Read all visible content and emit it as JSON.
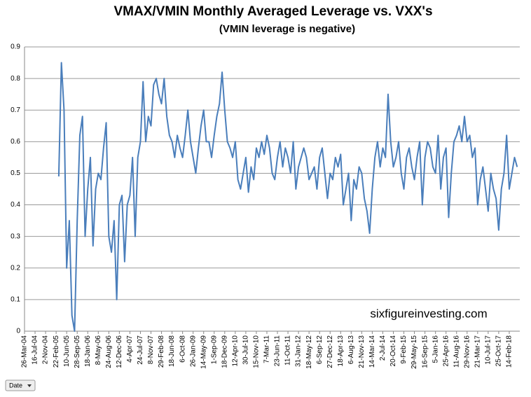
{
  "chart_data": {
    "type": "line",
    "title": "VMAX/VMIN Monthly Averaged Leverage vs. VXX's",
    "subtitle": "(VMIN leverage is negative)",
    "annotation": "sixfigureinvesting.com",
    "filter_button": "Date",
    "categories": [
      "26-Mar-04",
      null,
      null,
      null,
      "16-Jul-04",
      null,
      null,
      null,
      "2-Nov-04",
      null,
      null,
      null,
      "22-Feb-05",
      null,
      null,
      null,
      "10-Jun-05",
      null,
      null,
      null,
      "28-Sep-05",
      null,
      null,
      null,
      "18-Jan-06",
      null,
      null,
      null,
      "8-May-06",
      null,
      null,
      null,
      "24-Aug-06",
      null,
      null,
      null,
      "12-Dec-06",
      null,
      null,
      null,
      "4-Apr-07",
      null,
      null,
      null,
      "24-Jul-07",
      null,
      null,
      null,
      "8-Nov-07",
      null,
      null,
      null,
      "29-Feb-08",
      null,
      null,
      null,
      "18-Jun-08",
      null,
      null,
      null,
      "6-Oct-08",
      null,
      null,
      null,
      "26-Jan-09",
      null,
      null,
      null,
      "14-May-09",
      null,
      null,
      null,
      "1-Sep-09",
      null,
      null,
      null,
      "18-Dec-09",
      null,
      null,
      null,
      "12-Apr-10",
      null,
      null,
      null,
      "30-Jul-10",
      null,
      null,
      null,
      "15-Nov-10",
      null,
      null,
      null,
      "7-Mar-11",
      null,
      null,
      null,
      "23-Jun-11",
      null,
      null,
      null,
      "11-Oct-11",
      null,
      null,
      null,
      "31-Jan-12",
      null,
      null,
      null,
      "18-May-12",
      null,
      null,
      null,
      "6-Sep-12",
      null,
      null,
      null,
      "27-Dec-12",
      null,
      null,
      null,
      "18-Apr-13",
      null,
      null,
      null,
      "6-Aug-13",
      null,
      null,
      null,
      "21-Nov-13",
      null,
      null,
      null,
      "14-Mar-14",
      null,
      null,
      null,
      "2-Jul-14",
      null,
      null,
      null,
      "20-Oct-14",
      null,
      null,
      null,
      "9-Feb-15",
      null,
      null,
      null,
      "29-May-15",
      null,
      null,
      null,
      "16-Sep-15",
      null,
      null,
      null,
      "5-Jan-16",
      null,
      null,
      null,
      "25-Apr-16",
      null,
      null,
      null,
      "11-Aug-16",
      null,
      null,
      null,
      "29-Nov-16",
      null,
      null,
      null,
      "21-Mar-17",
      null,
      null,
      null,
      "10-Jul-17",
      null,
      null,
      null,
      "25-Oct-17",
      null,
      null,
      null,
      "14-Feb-18",
      null,
      null,
      null
    ],
    "series": [
      {
        "color": "#4a7ebb",
        "values": [
          null,
          null,
          null,
          null,
          null,
          null,
          null,
          null,
          null,
          null,
          null,
          null,
          null,
          0.49,
          0.85,
          0.7,
          0.2,
          0.35,
          0.05,
          0,
          0.35,
          0.62,
          0.68,
          0.3,
          0.45,
          0.55,
          0.27,
          0.45,
          0.5,
          0.48,
          0.58,
          0.66,
          0.3,
          0.25,
          0.35,
          0.1,
          0.4,
          0.43,
          0.22,
          0.4,
          0.43,
          0.55,
          0.3,
          0.55,
          0.6,
          0.79,
          0.6,
          0.68,
          0.65,
          0.78,
          0.8,
          0.75,
          0.72,
          0.8,
          0.68,
          0.62,
          0.6,
          0.55,
          0.62,
          0.58,
          0.55,
          0.62,
          0.7,
          0.6,
          0.55,
          0.5,
          0.58,
          0.65,
          0.7,
          0.6,
          0.6,
          0.55,
          0.62,
          0.68,
          0.72,
          0.82,
          0.7,
          0.6,
          0.58,
          0.55,
          0.6,
          0.48,
          0.45,
          0.5,
          0.55,
          0.44,
          0.52,
          0.48,
          0.58,
          0.55,
          0.6,
          0.56,
          0.62,
          0.58,
          0.5,
          0.48,
          0.55,
          0.6,
          0.52,
          0.58,
          0.55,
          0.5,
          0.6,
          0.45,
          0.52,
          0.55,
          0.58,
          0.55,
          0.48,
          0.5,
          0.52,
          0.45,
          0.55,
          0.58,
          0.5,
          0.42,
          0.5,
          0.48,
          0.55,
          0.52,
          0.56,
          0.4,
          0.45,
          0.5,
          0.35,
          0.48,
          0.45,
          0.52,
          0.5,
          0.42,
          0.38,
          0.31,
          0.45,
          0.55,
          0.6,
          0.52,
          0.58,
          0.55,
          0.75,
          0.6,
          0.52,
          0.55,
          0.6,
          0.5,
          0.45,
          0.55,
          0.58,
          0.52,
          0.48,
          0.55,
          0.6,
          0.4,
          0.55,
          0.6,
          0.58,
          0.52,
          0.5,
          0.62,
          0.45,
          0.55,
          0.58,
          0.36,
          0.5,
          0.6,
          0.62,
          0.65,
          0.6,
          0.68,
          0.6,
          0.62,
          0.55,
          0.58,
          0.4,
          0.48,
          0.52,
          0.45,
          0.38,
          0.5,
          0.45,
          0.42,
          0.32,
          0.45,
          0.5,
          0.62,
          0.45,
          0.5,
          0.55,
          0.52
        ]
      }
    ],
    "ylim": [
      0,
      0.9
    ],
    "yticks": [
      0,
      0.1,
      0.2,
      0.3,
      0.4,
      0.5,
      0.6,
      0.7,
      0.8,
      0.9
    ],
    "grid": true
  }
}
